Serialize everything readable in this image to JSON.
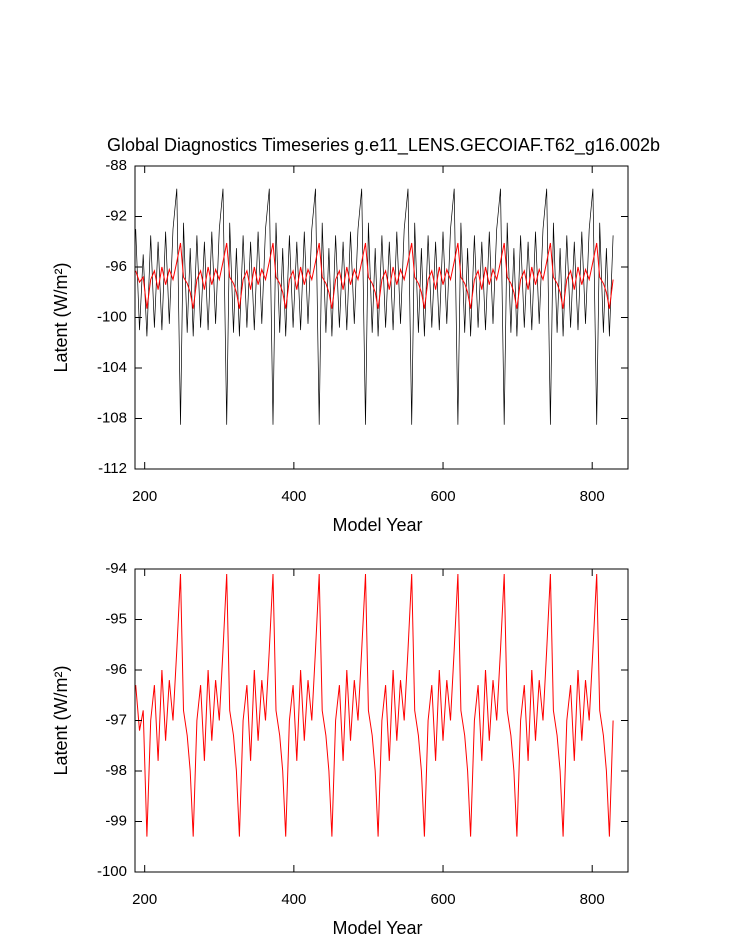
{
  "chart_data": [
    {
      "type": "line",
      "title": "Global Diagnostics Timeseries g.e11_LENS.GECOIAF.T62_g16.002b",
      "x_label": "Model Year",
      "y_label": "Latent (W/m²)",
      "xlim": [
        187,
        848
      ],
      "xticks": [
        200,
        400,
        600,
        800
      ],
      "ylim": [
        -112,
        -88
      ],
      "yticks": [
        -112,
        -108,
        -104,
        -100,
        -96,
        -92,
        -88
      ],
      "x": [
        188,
        193,
        198,
        203,
        208,
        213,
        218,
        223,
        228,
        233,
        238,
        243,
        248,
        252,
        257,
        261,
        265,
        270,
        275,
        280,
        285,
        290,
        295,
        300,
        305,
        310,
        314,
        319,
        323,
        327,
        332,
        337,
        342,
        347,
        352,
        357,
        362,
        367,
        372,
        376,
        381,
        385,
        389,
        394,
        399,
        404,
        409,
        414,
        419,
        424,
        429,
        434,
        438,
        443,
        447,
        451,
        456,
        461,
        466,
        471,
        476,
        481,
        486,
        491,
        496,
        500,
        505,
        509,
        513,
        518,
        523,
        528,
        533,
        538,
        543,
        548,
        553,
        558,
        562,
        567,
        571,
        575,
        580,
        585,
        590,
        595,
        600,
        605,
        610,
        615,
        620,
        624,
        629,
        633,
        637,
        642,
        647,
        652,
        657,
        662,
        667,
        672,
        677,
        682,
        686,
        691,
        695,
        699,
        704,
        709,
        714,
        719,
        724,
        729,
        734,
        739,
        744,
        748,
        753,
        757,
        761,
        766,
        771,
        776,
        781,
        786,
        791,
        796,
        801,
        806,
        810,
        815,
        819,
        823,
        828
      ],
      "series": [
        {
          "color": "#000000",
          "values": [
            -93.0,
            -101.0,
            -95.0,
            -101.5,
            -93.5,
            -100.8,
            -94.0,
            -101.0,
            -93.2,
            -100.5,
            -93.0,
            -89.8,
            -108.5,
            -92.5,
            -101.2,
            -94.5,
            -101.5,
            -93.5,
            -100.8,
            -94.0,
            -101.0,
            -93.2,
            -100.5,
            -93.0,
            -89.8,
            -108.5,
            -92.5,
            -101.2,
            -94.5,
            -101.5,
            -93.5,
            -100.8,
            -94.0,
            -101.0,
            -93.2,
            -100.5,
            -93.0,
            -89.8,
            -108.5,
            -92.5,
            -101.2,
            -94.5,
            -101.5,
            -93.5,
            -100.8,
            -94.0,
            -101.0,
            -93.2,
            -100.5,
            -93.0,
            -89.8,
            -108.5,
            -92.5,
            -101.2,
            -94.5,
            -101.5,
            -93.5,
            -100.8,
            -94.0,
            -101.0,
            -93.2,
            -100.5,
            -93.0,
            -89.8,
            -108.5,
            -92.5,
            -101.2,
            -94.5,
            -101.5,
            -93.5,
            -100.8,
            -94.0,
            -101.0,
            -93.2,
            -100.5,
            -93.0,
            -89.8,
            -108.5,
            -92.5,
            -101.2,
            -94.5,
            -101.5,
            -93.5,
            -100.8,
            -94.0,
            -101.0,
            -93.2,
            -100.5,
            -93.0,
            -89.8,
            -108.5,
            -92.5,
            -101.2,
            -94.5,
            -101.5,
            -93.5,
            -100.8,
            -94.0,
            -101.0,
            -93.2,
            -100.5,
            -93.0,
            -89.8,
            -108.5,
            -92.5,
            -101.2,
            -94.5,
            -101.5,
            -93.5,
            -100.8,
            -94.0,
            -101.0,
            -93.2,
            -100.5,
            -93.0,
            -89.8,
            -108.5,
            -92.5,
            -101.2,
            -94.5,
            -101.5,
            -93.5,
            -100.8,
            -94.0,
            -101.0,
            -93.2,
            -100.5,
            -93.0,
            -89.8,
            -108.5,
            -92.5,
            -101.2,
            -94.5,
            -101.5,
            -93.5
          ]
        },
        {
          "color": "#ff0000",
          "values": [
            -96.3,
            -97.2,
            -96.8,
            -99.3,
            -97.0,
            -96.3,
            -97.8,
            -96.0,
            -97.4,
            -96.2,
            -97.0,
            -95.6,
            -94.1,
            -96.8,
            -97.3,
            -98.0,
            -99.3,
            -97.0,
            -96.3,
            -97.8,
            -96.0,
            -97.4,
            -96.2,
            -97.0,
            -95.6,
            -94.1,
            -96.8,
            -97.3,
            -98.0,
            -99.3,
            -97.0,
            -96.3,
            -97.8,
            -96.0,
            -97.4,
            -96.2,
            -97.0,
            -95.6,
            -94.1,
            -96.8,
            -97.3,
            -98.0,
            -99.3,
            -97.0,
            -96.3,
            -97.8,
            -96.0,
            -97.4,
            -96.2,
            -97.0,
            -95.6,
            -94.1,
            -96.8,
            -97.3,
            -98.0,
            -99.3,
            -97.0,
            -96.3,
            -97.8,
            -96.0,
            -97.4,
            -96.2,
            -97.0,
            -95.6,
            -94.1,
            -96.8,
            -97.3,
            -98.0,
            -99.3,
            -97.0,
            -96.3,
            -97.8,
            -96.0,
            -97.4,
            -96.2,
            -97.0,
            -95.6,
            -94.1,
            -96.8,
            -97.3,
            -98.0,
            -99.3,
            -97.0,
            -96.3,
            -97.8,
            -96.0,
            -97.4,
            -96.2,
            -97.0,
            -95.6,
            -94.1,
            -96.8,
            -97.3,
            -98.0,
            -99.3,
            -97.0,
            -96.3,
            -97.8,
            -96.0,
            -97.4,
            -96.2,
            -97.0,
            -95.6,
            -94.1,
            -96.8,
            -97.3,
            -98.0,
            -99.3,
            -97.0,
            -96.3,
            -97.8,
            -96.0,
            -97.4,
            -96.2,
            -97.0,
            -95.6,
            -94.1,
            -96.8,
            -97.3,
            -98.0,
            -99.3,
            -97.0,
            -96.3,
            -97.8,
            -96.0,
            -97.4,
            -96.2,
            -97.0,
            -95.6,
            -94.1,
            -96.8,
            -97.3,
            -98.0,
            -99.3,
            -97.0
          ]
        }
      ]
    },
    {
      "type": "line",
      "x_label": "Model Year",
      "y_label": "Latent (W/m²)",
      "xlim": [
        187,
        848
      ],
      "xticks": [
        200,
        400,
        600,
        800
      ],
      "ylim": [
        -100,
        -94
      ],
      "yticks": [
        -100,
        -99,
        -98,
        -97,
        -96,
        -95,
        -94
      ],
      "x": [
        188,
        193,
        198,
        203,
        208,
        213,
        218,
        223,
        228,
        233,
        238,
        243,
        248,
        252,
        257,
        261,
        265,
        270,
        275,
        280,
        285,
        290,
        295,
        300,
        305,
        310,
        314,
        319,
        323,
        327,
        332,
        337,
        342,
        347,
        352,
        357,
        362,
        367,
        372,
        376,
        381,
        385,
        389,
        394,
        399,
        404,
        409,
        414,
        419,
        424,
        429,
        434,
        438,
        443,
        447,
        451,
        456,
        461,
        466,
        471,
        476,
        481,
        486,
        491,
        496,
        500,
        505,
        509,
        513,
        518,
        523,
        528,
        533,
        538,
        543,
        548,
        553,
        558,
        562,
        567,
        571,
        575,
        580,
        585,
        590,
        595,
        600,
        605,
        610,
        615,
        620,
        624,
        629,
        633,
        637,
        642,
        647,
        652,
        657,
        662,
        667,
        672,
        677,
        682,
        686,
        691,
        695,
        699,
        704,
        709,
        714,
        719,
        724,
        729,
        734,
        739,
        744,
        748,
        753,
        757,
        761,
        766,
        771,
        776,
        781,
        786,
        791,
        796,
        801,
        806,
        810,
        815,
        819,
        823,
        828
      ],
      "series": [
        {
          "color": "#ff0000",
          "values": [
            -96.3,
            -97.2,
            -96.8,
            -99.3,
            -97.0,
            -96.3,
            -97.8,
            -96.0,
            -97.4,
            -96.2,
            -97.0,
            -95.6,
            -94.1,
            -96.8,
            -97.3,
            -98.0,
            -99.3,
            -97.0,
            -96.3,
            -97.8,
            -96.0,
            -97.4,
            -96.2,
            -97.0,
            -95.6,
            -94.1,
            -96.8,
            -97.3,
            -98.0,
            -99.3,
            -97.0,
            -96.3,
            -97.8,
            -96.0,
            -97.4,
            -96.2,
            -97.0,
            -95.6,
            -94.1,
            -96.8,
            -97.3,
            -98.0,
            -99.3,
            -97.0,
            -96.3,
            -97.8,
            -96.0,
            -97.4,
            -96.2,
            -97.0,
            -95.6,
            -94.1,
            -96.8,
            -97.3,
            -98.0,
            -99.3,
            -97.0,
            -96.3,
            -97.8,
            -96.0,
            -97.4,
            -96.2,
            -97.0,
            -95.6,
            -94.1,
            -96.8,
            -97.3,
            -98.0,
            -99.3,
            -97.0,
            -96.3,
            -97.8,
            -96.0,
            -97.4,
            -96.2,
            -97.0,
            -95.6,
            -94.1,
            -96.8,
            -97.3,
            -98.0,
            -99.3,
            -97.0,
            -96.3,
            -97.8,
            -96.0,
            -97.4,
            -96.2,
            -97.0,
            -95.6,
            -94.1,
            -96.8,
            -97.3,
            -98.0,
            -99.3,
            -97.0,
            -96.3,
            -97.8,
            -96.0,
            -97.4,
            -96.2,
            -97.0,
            -95.6,
            -94.1,
            -96.8,
            -97.3,
            -98.0,
            -99.3,
            -97.0,
            -96.3,
            -97.8,
            -96.0,
            -97.4,
            -96.2,
            -97.0,
            -95.6,
            -94.1,
            -96.8,
            -97.3,
            -98.0,
            -99.3,
            -97.0,
            -96.3,
            -97.8,
            -96.0,
            -97.4,
            -96.2,
            -97.0,
            -95.6,
            -94.1,
            -96.8,
            -97.3,
            -98.0,
            -99.3,
            -97.0
          ]
        }
      ]
    }
  ]
}
